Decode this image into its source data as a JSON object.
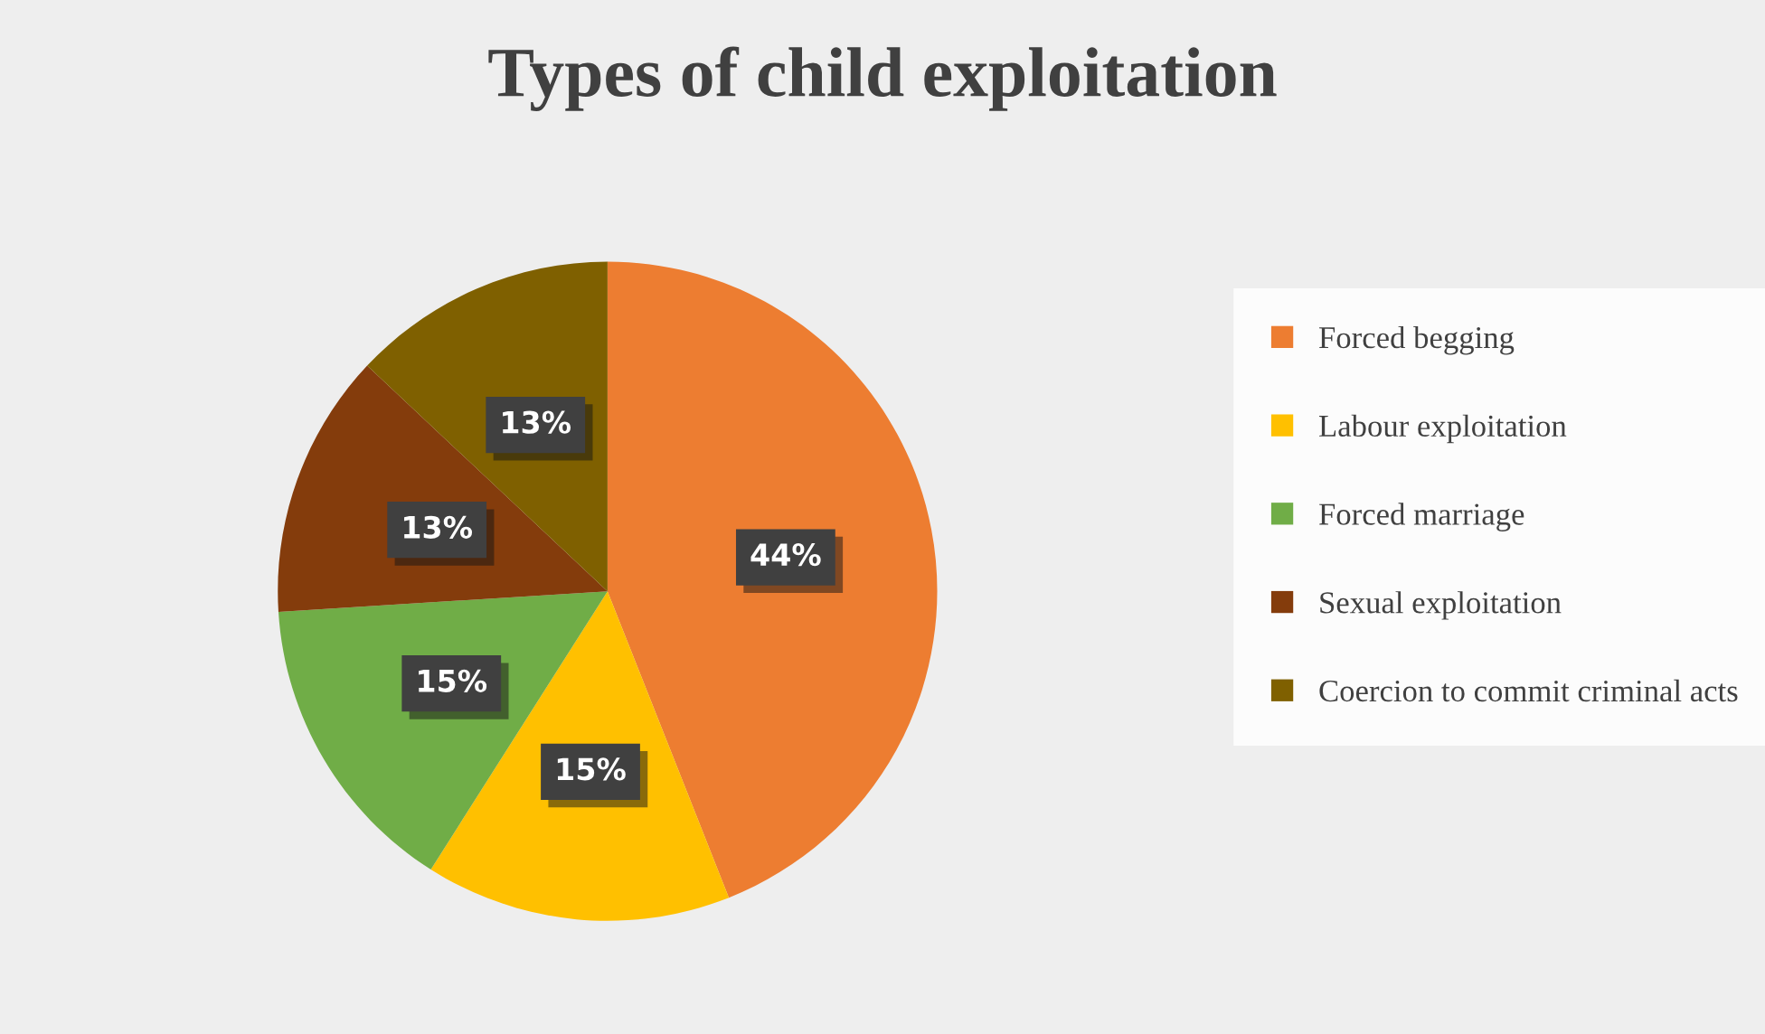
{
  "chart_data": {
    "type": "pie",
    "title": "Types of child exploitation",
    "categories": [
      "Forced begging",
      "Labour exploitation",
      "Forced marriage",
      "Sexual exploitation",
      "Coercion to commit criminal acts"
    ],
    "values": [
      44,
      15,
      15,
      13,
      13
    ],
    "colors": [
      "#ed7d31",
      "#ffc000",
      "#70ad47",
      "#843c0c",
      "#7f6000"
    ],
    "value_labels": [
      "44%",
      "15%",
      "15%",
      "13%",
      "13%"
    ],
    "legend": "right"
  }
}
